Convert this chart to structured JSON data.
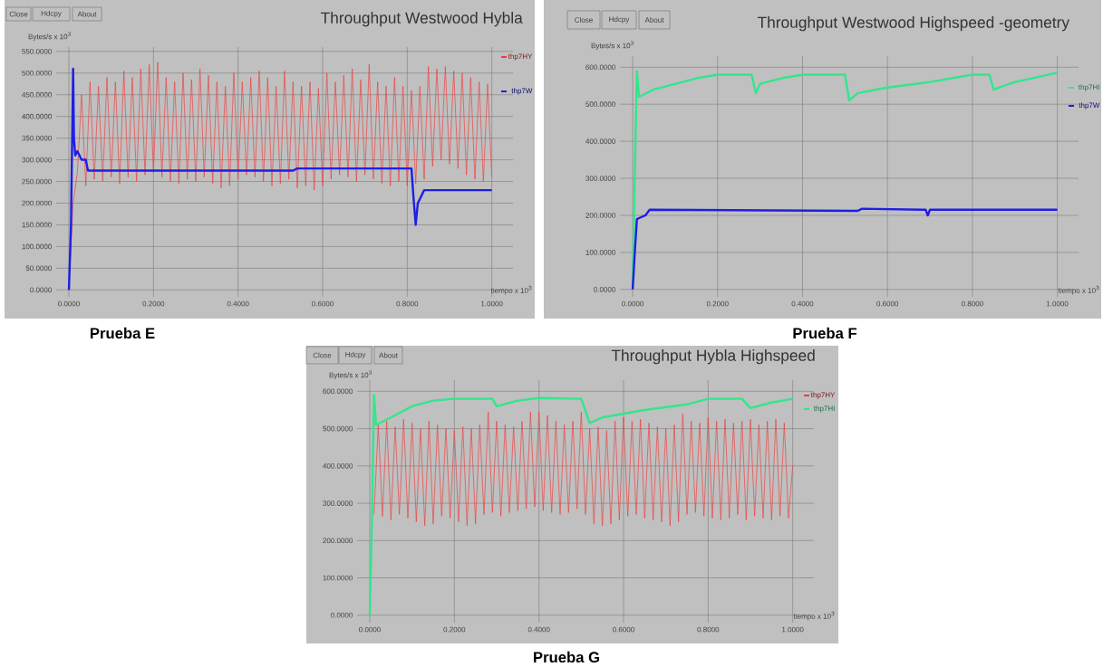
{
  "chart_data": [
    {
      "type": "line",
      "title": "Throughput Westwood Hybla",
      "subtitle": "Prueba E",
      "xlabel": "tiempo x 10$^{3}$",
      "ylabel": "Bytes/s x 10$^{3}$",
      "annotations": [
        "Close",
        "Hdcpy",
        "About"
      ],
      "xlim": [
        -0.03,
        1.05
      ],
      "ylim": [
        -16,
        560
      ],
      "xticks": [
        {
          "value": 0,
          "label": "0.0000"
        },
        {
          "value": 0.2,
          "label": "0.2000"
        },
        {
          "value": 0.4,
          "label": "0.4000"
        },
        {
          "value": 0.6,
          "label": "0.6000"
        },
        {
          "value": 0.8,
          "label": "0.8000"
        },
        {
          "value": 1,
          "label": "1.0000"
        }
      ],
      "yticks": [
        {
          "value": 0,
          "label": "0.0000"
        },
        {
          "value": 50,
          "label": "50.0000"
        },
        {
          "value": 100,
          "label": "100.0000"
        },
        {
          "value": 150,
          "label": "150.0000"
        },
        {
          "value": 200,
          "label": "200.0000"
        },
        {
          "value": 250,
          "label": "250.0000"
        },
        {
          "value": 300,
          "label": "300.0000"
        },
        {
          "value": 350,
          "label": "350.0000"
        },
        {
          "value": 400,
          "label": "400.0000"
        },
        {
          "value": 450,
          "label": "450.0000"
        },
        {
          "value": 500,
          "label": "500.0000"
        },
        {
          "value": 550,
          "label": "550.0000"
        }
      ],
      "grid": true,
      "legend": "right",
      "series": [
        {
          "name": "thp7HY",
          "color": "#f03c3c",
          "x": [
            0,
            0.01,
            0.02,
            0.03,
            0.04,
            0.05,
            0.06,
            0.07,
            0.08,
            0.09,
            0.1,
            0.11,
            0.12,
            0.13,
            0.14,
            0.15,
            0.16,
            0.17,
            0.18,
            0.19,
            0.2,
            0.21,
            0.22,
            0.23,
            0.24,
            0.25,
            0.26,
            0.27,
            0.28,
            0.29,
            0.3,
            0.31,
            0.32,
            0.33,
            0.34,
            0.35,
            0.36,
            0.37,
            0.38,
            0.39,
            0.4,
            0.41,
            0.42,
            0.43,
            0.44,
            0.45,
            0.46,
            0.47,
            0.48,
            0.49,
            0.5,
            0.51,
            0.52,
            0.53,
            0.54,
            0.55,
            0.56,
            0.57,
            0.58,
            0.59,
            0.6,
            0.61,
            0.62,
            0.63,
            0.64,
            0.65,
            0.66,
            0.67,
            0.68,
            0.69,
            0.7,
            0.71,
            0.72,
            0.73,
            0.74,
            0.75,
            0.76,
            0.77,
            0.78,
            0.79,
            0.8,
            0.81,
            0.82,
            0.83,
            0.84,
            0.85,
            0.86,
            0.87,
            0.88,
            0.89,
            0.9,
            0.91,
            0.92,
            0.93,
            0.94,
            0.95,
            0.96,
            0.97,
            0.98,
            0.99,
            1.0
          ],
          "values": [
            0,
            200,
            270,
            450,
            240,
            480,
            255,
            470,
            250,
            490,
            260,
            480,
            245,
            505,
            260,
            490,
            250,
            510,
            265,
            520,
            270,
            525,
            260,
            490,
            250,
            480,
            245,
            500,
            255,
            485,
            250,
            510,
            260,
            495,
            245,
            480,
            235,
            470,
            240,
            500,
            255,
            480,
            265,
            490,
            260,
            505,
            250,
            490,
            240,
            470,
            245,
            505,
            255,
            480,
            235,
            470,
            240,
            480,
            230,
            465,
            240,
            500,
            255,
            480,
            265,
            495,
            260,
            510,
            250,
            485,
            265,
            520,
            255,
            480,
            245,
            470,
            240,
            490,
            250,
            470,
            240,
            460,
            245,
            470,
            255,
            515,
            285,
            510,
            300,
            515,
            290,
            505,
            280,
            500,
            265,
            490,
            255,
            480,
            250,
            475,
            260
          ]
        },
        {
          "name": "thp7W",
          "color": "#1e1ee6",
          "x": [
            0,
            0.005,
            0.01,
            0.012,
            0.015,
            0.02,
            0.03,
            0.04,
            0.045,
            0.53,
            0.54,
            0.81,
            0.815,
            0.82,
            0.825,
            0.83,
            0.84,
            1.0
          ],
          "values": [
            0,
            150,
            510,
            350,
            310,
            320,
            300,
            300,
            275,
            275,
            280,
            280,
            210,
            150,
            200,
            210,
            230,
            230
          ]
        }
      ]
    },
    {
      "type": "line",
      "title": "Throughput Westwood Highspeed -geometry",
      "subtitle": "Prueba F",
      "xlabel": "tiempo x 10$^{3}$",
      "ylabel": "Bytes/s x 10$^{3}$",
      "annotations": [
        "Close",
        "Hdcpy",
        "About"
      ],
      "xlim": [
        -0.03,
        1.05
      ],
      "ylim": [
        -20,
        630
      ],
      "xticks": [
        {
          "value": 0,
          "label": "0.0000"
        },
        {
          "value": 0.2,
          "label": "0.2000"
        },
        {
          "value": 0.4,
          "label": "0.4000"
        },
        {
          "value": 0.6,
          "label": "0.6000"
        },
        {
          "value": 0.8,
          "label": "0.8000"
        },
        {
          "value": 1,
          "label": "1.0000"
        }
      ],
      "yticks": [
        {
          "value": 0,
          "label": "0.0000"
        },
        {
          "value": 100,
          "label": "100.0000"
        },
        {
          "value": 200,
          "label": "200.0000"
        },
        {
          "value": 300,
          "label": "300.0000"
        },
        {
          "value": 400,
          "label": "400.0000"
        },
        {
          "value": 500,
          "label": "500.0000"
        },
        {
          "value": 600,
          "label": "600.0000"
        }
      ],
      "grid": true,
      "legend": "right",
      "series": [
        {
          "name": "thp7HI",
          "color": "#32e68c",
          "x": [
            0,
            0.005,
            0.01,
            0.015,
            0.05,
            0.1,
            0.15,
            0.2,
            0.28,
            0.29,
            0.3,
            0.35,
            0.4,
            0.5,
            0.51,
            0.53,
            0.6,
            0.7,
            0.8,
            0.84,
            0.85,
            0.9,
            1.0
          ],
          "values": [
            0,
            300,
            590,
            520,
            540,
            555,
            570,
            580,
            580,
            530,
            555,
            570,
            580,
            580,
            510,
            530,
            545,
            560,
            580,
            580,
            540,
            560,
            585
          ]
        },
        {
          "name": "thp7W",
          "color": "#1e1ee6",
          "x": [
            0,
            0.005,
            0.01,
            0.02,
            0.03,
            0.04,
            0.53,
            0.54,
            0.69,
            0.695,
            0.7,
            1.0
          ],
          "values": [
            0,
            100,
            190,
            195,
            200,
            215,
            212,
            218,
            215,
            200,
            215,
            215
          ]
        }
      ]
    },
    {
      "type": "line",
      "title": "Throughput Hybla Highspeed",
      "subtitle": "Prueba G",
      "xlabel": "tiempo x 10$^{3}$",
      "ylabel": "Bytes/s x 10$^{3}$",
      "annotations": [
        "Close",
        "Hdcpy",
        "About"
      ],
      "xlim": [
        -0.03,
        1.05
      ],
      "ylim": [
        -20,
        630
      ],
      "xticks": [
        {
          "value": 0,
          "label": "0.0000"
        },
        {
          "value": 0.2,
          "label": "0.2000"
        },
        {
          "value": 0.4,
          "label": "0.4000"
        },
        {
          "value": 0.6,
          "label": "0.6000"
        },
        {
          "value": 0.8,
          "label": "0.8000"
        },
        {
          "value": 1,
          "label": "1.0000"
        }
      ],
      "yticks": [
        {
          "value": 0,
          "label": "0.0000"
        },
        {
          "value": 100,
          "label": "100.0000"
        },
        {
          "value": 200,
          "label": "200.0000"
        },
        {
          "value": 300,
          "label": "300.0000"
        },
        {
          "value": 400,
          "label": "400.0000"
        },
        {
          "value": 500,
          "label": "500.0000"
        },
        {
          "value": 600,
          "label": "600.0000"
        }
      ],
      "grid": true,
      "legend": "right",
      "series": [
        {
          "name": "thp7HY",
          "color": "#f03c3c",
          "x": [
            0.01,
            0.02,
            0.03,
            0.04,
            0.05,
            0.06,
            0.07,
            0.08,
            0.09,
            0.1,
            0.11,
            0.12,
            0.13,
            0.14,
            0.15,
            0.16,
            0.17,
            0.18,
            0.19,
            0.2,
            0.21,
            0.22,
            0.23,
            0.24,
            0.25,
            0.26,
            0.27,
            0.28,
            0.29,
            0.3,
            0.31,
            0.32,
            0.33,
            0.34,
            0.35,
            0.36,
            0.37,
            0.38,
            0.39,
            0.4,
            0.41,
            0.42,
            0.43,
            0.44,
            0.45,
            0.46,
            0.47,
            0.48,
            0.49,
            0.5,
            0.51,
            0.52,
            0.53,
            0.54,
            0.55,
            0.56,
            0.57,
            0.58,
            0.59,
            0.6,
            0.61,
            0.62,
            0.63,
            0.64,
            0.65,
            0.66,
            0.67,
            0.68,
            0.69,
            0.7,
            0.71,
            0.72,
            0.73,
            0.74,
            0.75,
            0.76,
            0.77,
            0.78,
            0.79,
            0.8,
            0.81,
            0.82,
            0.83,
            0.84,
            0.85,
            0.86,
            0.87,
            0.88,
            0.89,
            0.9,
            0.91,
            0.92,
            0.93,
            0.94,
            0.95,
            0.96,
            0.97,
            0.98,
            0.99,
            1.0
          ],
          "values": [
            270,
            510,
            265,
            520,
            255,
            505,
            270,
            525,
            260,
            515,
            250,
            500,
            240,
            520,
            245,
            510,
            265,
            500,
            260,
            495,
            250,
            505,
            240,
            500,
            245,
            510,
            270,
            545,
            275,
            520,
            265,
            510,
            275,
            505,
            280,
            520,
            285,
            545,
            290,
            545,
            280,
            535,
            275,
            520,
            270,
            510,
            275,
            520,
            285,
            545,
            270,
            500,
            245,
            505,
            240,
            495,
            245,
            520,
            255,
            530,
            265,
            520,
            270,
            525,
            260,
            515,
            255,
            505,
            250,
            500,
            240,
            510,
            250,
            540,
            270,
            520,
            275,
            515,
            265,
            530,
            260,
            520,
            255,
            525,
            260,
            515,
            270,
            520,
            255,
            525,
            265,
            510,
            260,
            520,
            255,
            525,
            265,
            515,
            260,
            400
          ]
        },
        {
          "name": "thp7HI",
          "color": "#32e68c",
          "x": [
            0,
            0.005,
            0.01,
            0.015,
            0.05,
            0.1,
            0.15,
            0.2,
            0.29,
            0.3,
            0.35,
            0.4,
            0.5,
            0.52,
            0.55,
            0.65,
            0.75,
            0.8,
            0.88,
            0.9,
            0.95,
            1.0
          ],
          "values": [
            0,
            250,
            590,
            510,
            530,
            560,
            575,
            580,
            580,
            560,
            575,
            582,
            580,
            515,
            530,
            550,
            565,
            580,
            580,
            555,
            570,
            580
          ]
        }
      ]
    }
  ]
}
